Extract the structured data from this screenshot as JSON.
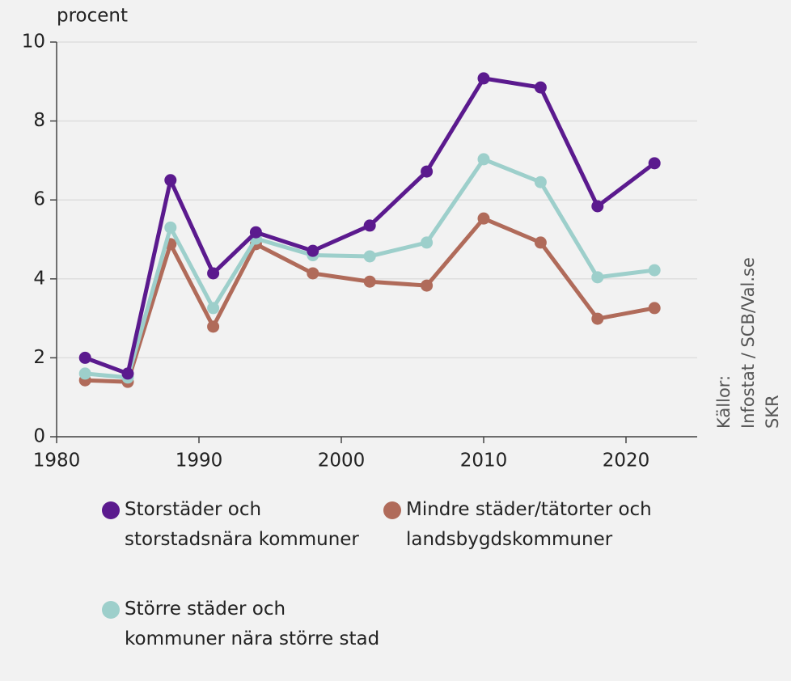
{
  "chart_data": {
    "type": "line",
    "y_label": "procent",
    "source": [
      "Källor:",
      "Infostat / SCB/Val.se",
      "SKR"
    ],
    "x": [
      1982,
      1985,
      1988,
      1991,
      1994,
      1998,
      2002,
      2006,
      2010,
      2014,
      2018,
      2022
    ],
    "series": [
      {
        "name": "Storstäder och storstadsnära kommuner",
        "color": "#5b1a8e",
        "values": [
          2.0,
          1.6,
          6.5,
          4.14,
          5.18,
          4.71,
          5.35,
          6.72,
          9.08,
          8.85,
          5.84,
          6.93
        ]
      },
      {
        "name": "Större städer och kommuner nära större stad",
        "color": "#9dcfcb",
        "values": [
          1.6,
          1.5,
          5.3,
          3.26,
          5.02,
          4.6,
          4.57,
          4.92,
          7.03,
          6.45,
          4.04,
          4.22
        ]
      },
      {
        "name": "Mindre städer/tätorter och landsbygdskommuner",
        "color": "#b06b5a",
        "values": [
          1.43,
          1.39,
          4.88,
          2.79,
          4.88,
          4.14,
          3.93,
          3.83,
          5.53,
          4.92,
          2.99,
          3.26
        ]
      }
    ],
    "xlim": [
      1980,
      2025
    ],
    "xticks": [
      1980,
      1990,
      2000,
      2010,
      2020
    ],
    "ylim": [
      0,
      10
    ],
    "yticks": [
      0,
      2,
      4,
      6,
      8,
      10
    ],
    "grid": true
  }
}
